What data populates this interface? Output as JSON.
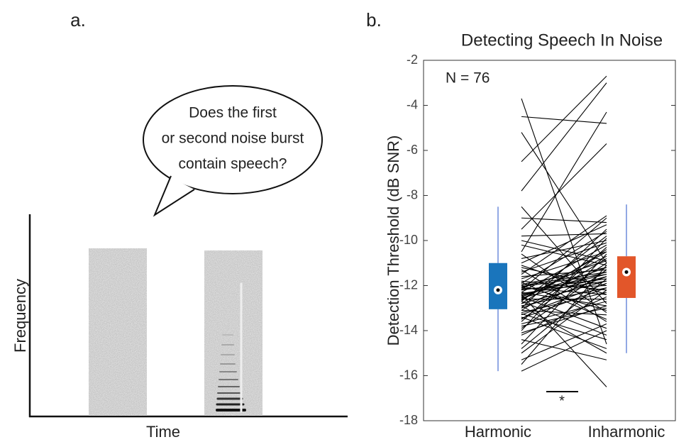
{
  "panel_labels": [
    "a.",
    "b."
  ],
  "diagram": {
    "bubble": [
      "Does the first",
      "or second noise burst",
      "contain speech?"
    ],
    "y_axis": "Frequency",
    "x_axis": "Time"
  },
  "chart_data": {
    "type": "paired_box",
    "title": "Detecting Speech In Noise",
    "ylabel": "Detection Threshold (dB SNR)",
    "annotation": "N = 76",
    "significance": "*",
    "categories": [
      "Harmonic",
      "Inharmonic"
    ],
    "ylim": [
      -18,
      -2
    ],
    "yticks": [
      -18,
      -16,
      -14,
      -12,
      -10,
      -8,
      -6,
      -4,
      -2
    ],
    "boxes": [
      {
        "whislo": -15.8,
        "q1": -13.05,
        "med": -12.2,
        "q3": -11.0,
        "whishi": -8.5,
        "color": "#1a75bc"
      },
      {
        "whislo": -15.0,
        "q1": -12.55,
        "med": -11.4,
        "q3": -10.7,
        "whishi": -8.4,
        "color": "#e2562a"
      }
    ],
    "pairs": [
      [
        -3.7,
        -4.5,
        -5.2,
        -6.5,
        -7.8,
        -8.5,
        -9.0,
        -9.5,
        -10.2,
        -10.5,
        -10.8,
        -11.0,
        -11.2,
        -11.3,
        -11.5,
        -11.6,
        -11.7,
        -11.8,
        -11.9,
        -12.0,
        -12.0,
        -12.1,
        -12.1,
        -12.2,
        -12.2,
        -12.3,
        -12.3,
        -12.4,
        -12.4,
        -12.5,
        -12.5,
        -12.6,
        -12.6,
        -12.7,
        -12.7,
        -12.8,
        -12.8,
        -12.9,
        -12.9,
        -13.0,
        -13.0,
        -13.1,
        -13.1,
        -13.2,
        -13.3,
        -13.4,
        -13.5,
        -13.6,
        -13.7,
        -13.8,
        -13.9,
        -14.0,
        -14.2,
        -14.4,
        -14.6,
        -14.8,
        -15.0,
        -15.3,
        -15.5,
        -15.8,
        -11.4,
        -12.05,
        -12.15,
        -12.35,
        -11.85,
        -10.0,
        -9.8,
        -11.1,
        -12.45,
        -12.55,
        -13.25,
        -12.65,
        -14.1,
        -11.95,
        -10.6,
        -13.45
      ],
      [
        -14.6,
        -4.8,
        -11.0,
        -2.7,
        -3.0,
        -12.8,
        -9.2,
        -5.7,
        -11.1,
        -4.3,
        -10.0,
        -9.3,
        -12.0,
        -13.6,
        -8.9,
        -11.3,
        -10.5,
        -12.2,
        -9.6,
        -11.4,
        -13.1,
        -10.9,
        -12.4,
        -11.7,
        -9.0,
        -12.9,
        -10.2,
        -16.5,
        -11.5,
        -13.9,
        -11.2,
        -10.7,
        -12.6,
        -9.8,
        -14.2,
        -11.8,
        -10.4,
        -12.1,
        -15.0,
        -11.6,
        -9.5,
        -13.3,
        -10.8,
        -12.3,
        -11.9,
        -14.8,
        -11.0,
        -10.3,
        -12.7,
        -13.0,
        -11.3,
        -9.9,
        -12.5,
        -15.3,
        -10.6,
        -11.7,
        -12.2,
        -13.7,
        -11.1,
        -14.0,
        -10.1,
        -11.5,
        -12.0,
        -11.8,
        -13.5,
        -10.9,
        -9.7,
        -12.4,
        -11.4,
        -11.6,
        -14.4,
        -10.5,
        -12.9,
        -11.2,
        -13.2,
        -12.1
      ]
    ]
  }
}
